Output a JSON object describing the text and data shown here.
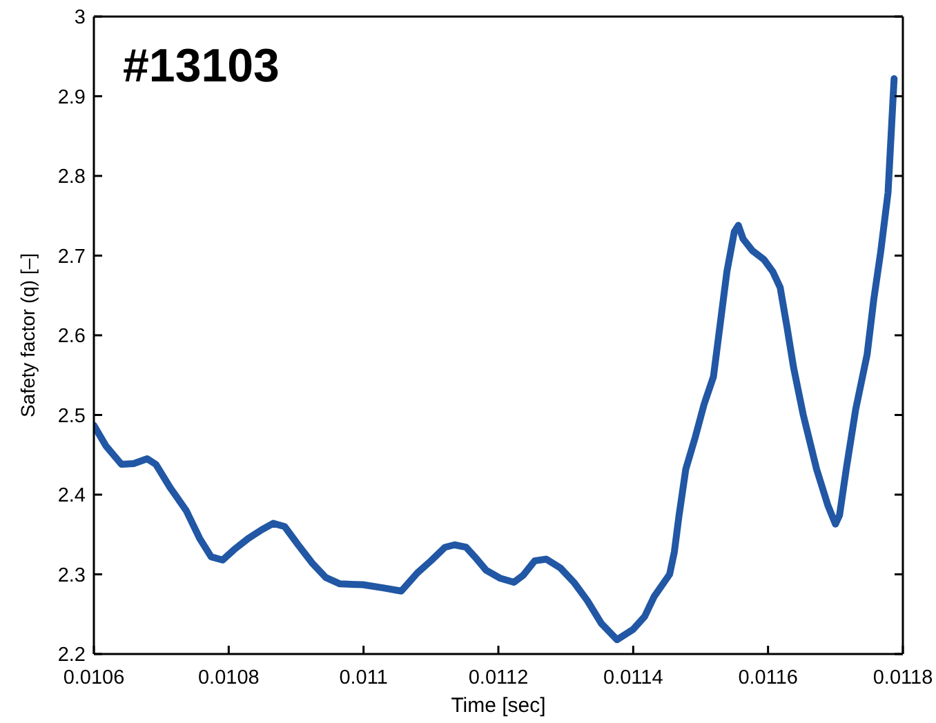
{
  "chart_data": {
    "type": "line",
    "title": "#13103",
    "xlabel": "Time [sec]",
    "ylabel": "Safety factor (q) [–]",
    "x": [
      0.0106,
      0.010618,
      0.010641,
      0.010659,
      0.010679,
      0.010692,
      0.010713,
      0.010737,
      0.010757,
      0.010774,
      0.010791,
      0.010808,
      0.010829,
      0.010849,
      0.010866,
      0.010883,
      0.010903,
      0.010924,
      0.010944,
      0.010965,
      0.010999,
      0.011029,
      0.011056,
      0.01108,
      0.0111,
      0.011121,
      0.011135,
      0.011152,
      0.011165,
      0.011182,
      0.011203,
      0.011223,
      0.011237,
      0.011254,
      0.011271,
      0.011292,
      0.011312,
      0.011332,
      0.011353,
      0.011376,
      0.0114,
      0.011417,
      0.011431,
      0.011454,
      0.011461,
      0.011468,
      0.011478,
      0.011492,
      0.011505,
      0.011519,
      0.011526,
      0.011539,
      0.01155,
      0.011556,
      0.011563,
      0.011577,
      0.011594,
      0.011607,
      0.011618,
      0.011628,
      0.011638,
      0.011652,
      0.011672,
      0.011689,
      0.0117,
      0.011706,
      0.011716,
      0.01173,
      0.011747,
      0.011757,
      0.011767,
      0.011778,
      0.011787
    ],
    "values": [
      2.487,
      2.461,
      2.438,
      2.439,
      2.445,
      2.438,
      2.409,
      2.38,
      2.345,
      2.322,
      2.318,
      2.331,
      2.345,
      2.356,
      2.364,
      2.36,
      2.337,
      2.314,
      2.296,
      2.288,
      2.287,
      2.283,
      2.279,
      2.302,
      2.317,
      2.334,
      2.337,
      2.334,
      2.322,
      2.305,
      2.295,
      2.29,
      2.299,
      2.317,
      2.319,
      2.308,
      2.29,
      2.267,
      2.238,
      2.218,
      2.231,
      2.247,
      2.272,
      2.3,
      2.328,
      2.374,
      2.432,
      2.472,
      2.513,
      2.548,
      2.594,
      2.68,
      2.73,
      2.738,
      2.721,
      2.706,
      2.695,
      2.68,
      2.66,
      2.611,
      2.559,
      2.501,
      2.432,
      2.386,
      2.363,
      2.374,
      2.432,
      2.507,
      2.576,
      2.646,
      2.704,
      2.779,
      2.922
    ],
    "color": "#2157a4",
    "xlim": [
      0.0106,
      0.0118
    ],
    "xticks": [
      0.0106,
      0.0108,
      0.011,
      0.0112,
      0.0114,
      0.0116,
      0.0118
    ],
    "ylim": [
      2.2,
      3
    ],
    "yticks": [
      2.2,
      2.3,
      2.4,
      2.5,
      2.6,
      2.7,
      2.8,
      2.9,
      3
    ],
    "marker": "none",
    "line_style": "solid"
  }
}
